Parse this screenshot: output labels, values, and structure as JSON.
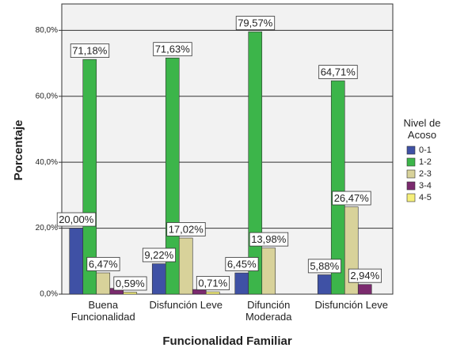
{
  "chart_data": {
    "type": "bar",
    "x_label": "Funcionalidad Familiar",
    "y_label": "Porcentaje",
    "categories": [
      "Buena Funcionalidad",
      "Disfunción Leve",
      "Difunción Moderada",
      "Disfunción Leve"
    ],
    "series": [
      {
        "name": "0-1",
        "color": "#3f51a5",
        "values": [
          20.0,
          9.22,
          6.45,
          5.88
        ],
        "value_labels": [
          "20,00%",
          "9,22%",
          "6,45%",
          "5,88%"
        ]
      },
      {
        "name": "1-2",
        "color": "#3cb54a",
        "values": [
          71.18,
          71.63,
          79.57,
          64.71
        ],
        "value_labels": [
          "71,18%",
          "71,63%",
          "79,57%",
          "64,71%"
        ]
      },
      {
        "name": "2-3",
        "color": "#d8d29a",
        "values": [
          6.47,
          17.02,
          13.98,
          26.47
        ],
        "value_labels": [
          "6,47%",
          "17,02%",
          "13,98%",
          "26,47%"
        ]
      },
      {
        "name": "3-4",
        "color": "#7b2a6e",
        "values": [
          1.76,
          1.42,
          null,
          2.94
        ],
        "value_labels": [
          null,
          null,
          null,
          "2,94%"
        ]
      },
      {
        "name": "4-5",
        "color": "#f5ef7a",
        "values": [
          0.59,
          0.71,
          null,
          null
        ],
        "value_labels": [
          "0,59%",
          "0,71%",
          null,
          null
        ]
      }
    ],
    "legend_title": "Nivel de Acoso",
    "ylim": [
      0,
      88
    ],
    "yticks": [
      {
        "value": 0,
        "label": "0,0%"
      },
      {
        "value": 20,
        "label": "20,0%"
      },
      {
        "value": 40,
        "label": "40,0%"
      },
      {
        "value": 60,
        "label": "60,0%"
      },
      {
        "value": 80,
        "label": "80,0%"
      }
    ],
    "grid": true
  }
}
